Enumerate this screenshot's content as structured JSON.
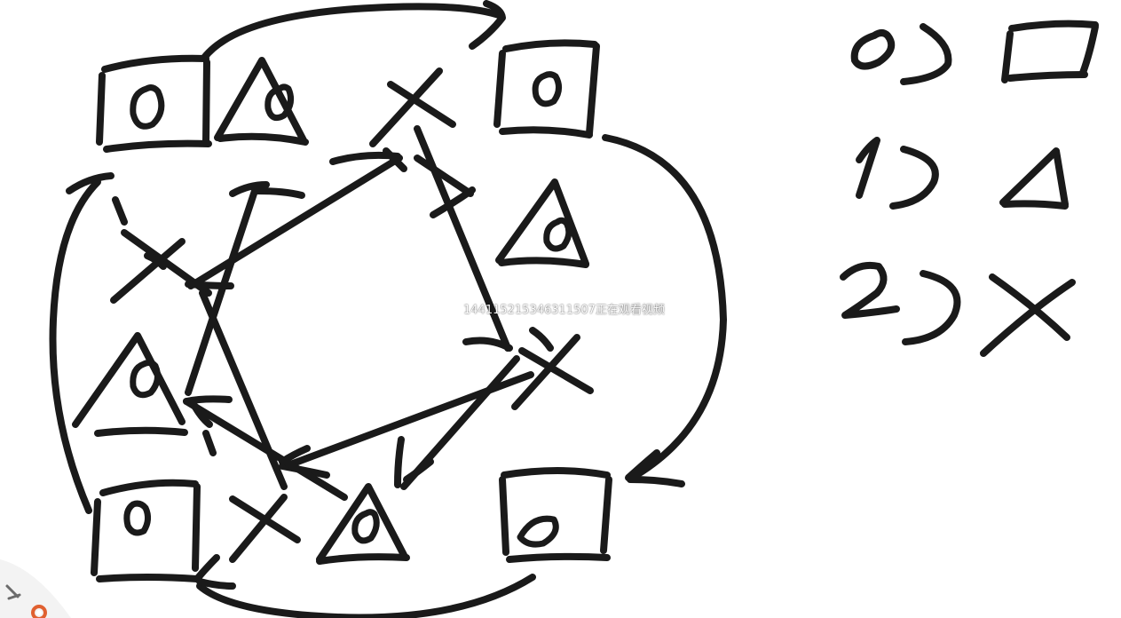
{
  "watermark": {
    "text": "1441152153463115​07正在观看视频"
  },
  "legend": [
    {
      "index": "0)",
      "symbol": "square"
    },
    {
      "index": "1)",
      "symbol": "triangle"
    },
    {
      "index": "2)",
      "symbol": "cross"
    }
  ],
  "colors": {
    "ink": "#1a1a1a",
    "background": "#ffffff",
    "watermark": "#ffffff"
  }
}
